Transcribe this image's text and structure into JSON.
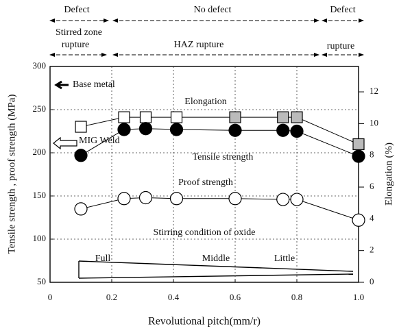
{
  "chart_data": {
    "type": "line",
    "xlabel": "Revolutional pitch(mm/r)",
    "ylabel": "Tensile strength , proof strength (MPa)",
    "y2label": "Elongation (%)",
    "xlim": [
      0,
      1
    ],
    "xticks": [
      0,
      0.2,
      0.4,
      0.6,
      0.8,
      {
        "value": 1,
        "label": "1.0"
      }
    ],
    "ylim": [
      50,
      300
    ],
    "yticks": [
      50,
      100,
      150,
      200,
      250,
      300
    ],
    "y2lim": [
      0,
      13.6
    ],
    "y2ticks": [
      0,
      2,
      4,
      6,
      8,
      10,
      12
    ],
    "grid": true,
    "x": [
      0.1,
      0.24,
      0.31,
      0.41,
      0.6,
      0.755,
      0.8,
      1
    ],
    "series": [
      {
        "name": "Elongation",
        "color": "#000000",
        "marker": "square",
        "axis": "y2",
        "point_fills": [
          "#ffffff",
          "#ffffff",
          "#ffffff",
          "#ffffff",
          "#bbbbbb",
          "#bbbbbb",
          "#bbbbbb",
          "#bbbbbb"
        ],
        "values": [
          9.8,
          10.4,
          10.4,
          10.4,
          10.4,
          10.4,
          10.4,
          8.7
        ]
      },
      {
        "name": "Tensile strength",
        "color": "#000000",
        "marker": "filled-circle",
        "values": [
          197,
          227,
          228,
          227,
          226,
          226,
          225,
          196
        ]
      },
      {
        "name": "Proof strength",
        "color": "#000000",
        "marker": "open-circle",
        "values": [
          135,
          147,
          148,
          147,
          147,
          146,
          146,
          122
        ]
      }
    ],
    "annotations": [
      "Defect",
      "No defect",
      "Defect",
      "Stirred zone",
      "rupture",
      "HAZ rupture",
      "rupture",
      "Base metal",
      "MIG Weld",
      "Stirring condition of oxide",
      "Full",
      "Middle",
      "Little"
    ]
  }
}
